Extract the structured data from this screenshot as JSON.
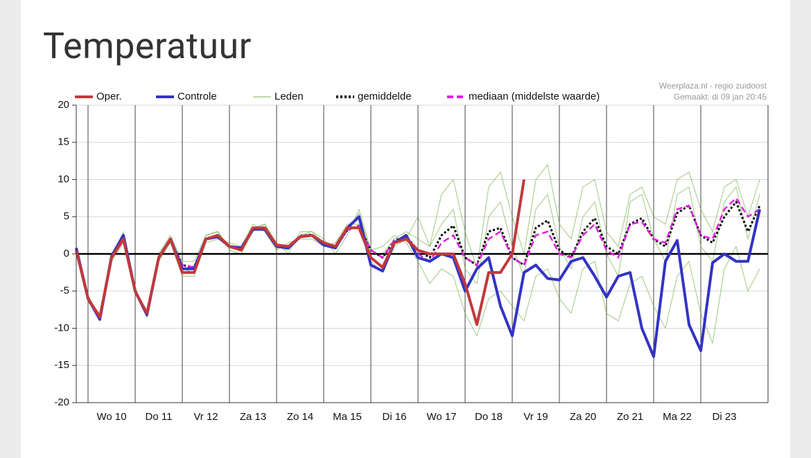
{
  "page": {
    "title": "Temperatuur"
  },
  "chart_data": {
    "type": "line",
    "credits": [
      "Weerplaza.nl - regio zuidoost",
      "Gemaakt: di 09 jan 20:45"
    ],
    "categories": [
      null,
      null,
      null,
      "Wo 10",
      null,
      null,
      null,
      "Do 11",
      null,
      null,
      null,
      "Vr 12",
      null,
      null,
      null,
      "Za 13",
      null,
      null,
      null,
      "Zo 14",
      null,
      null,
      null,
      "Ma 15",
      null,
      null,
      null,
      "Di 16",
      null,
      null,
      null,
      "Wo 17",
      null,
      null,
      null,
      "Do 18",
      null,
      null,
      null,
      "Vr 19",
      null,
      null,
      null,
      "Za 20",
      null,
      null,
      null,
      "Zo 21",
      null,
      null,
      null,
      "Ma 22",
      null,
      null,
      null,
      "Di 23",
      null,
      null,
      null
    ],
    "ylim": [
      -20,
      20
    ],
    "yticks": [
      -20,
      -15,
      -10,
      -5,
      0,
      5,
      10,
      15,
      20
    ],
    "grid": true,
    "zero_line": 0,
    "series": [
      {
        "name": "Oper.",
        "color": "#c0393b",
        "width": 4,
        "values": [
          0.5,
          -6,
          -8.5,
          -0.5,
          2,
          -5,
          -8,
          -0.5,
          2,
          -2.5,
          -2.5,
          2,
          2.5,
          1,
          0.5,
          3.5,
          3.5,
          1.2,
          1,
          2.3,
          2.5,
          1.5,
          1,
          3.5,
          3.5,
          -0.5,
          -1.8,
          1.5,
          2,
          0.5,
          0,
          0,
          0,
          -4,
          -9.5,
          -2.5,
          -2.5,
          0,
          10,
          null,
          null,
          null,
          null,
          null,
          null,
          null,
          null,
          null,
          null,
          null,
          null,
          null,
          null,
          null,
          null,
          null,
          null,
          null,
          null
        ]
      },
      {
        "name": "Controle",
        "color": "#3333c4",
        "width": 4,
        "values": [
          0.8,
          -6,
          -8.8,
          -0.3,
          2.5,
          -5,
          -8.2,
          -0.5,
          2,
          -2,
          -2,
          2,
          2.3,
          1,
          0.8,
          3.3,
          3.3,
          1,
          0.8,
          2.3,
          2.5,
          1.2,
          0.8,
          3.5,
          5,
          -1.5,
          -2.3,
          1.5,
          2.5,
          -0.5,
          -1,
          0,
          -0.5,
          -5,
          -2,
          -0.5,
          -7,
          -11,
          -2.5,
          -1.5,
          -3.3,
          -3.5,
          -1,
          -0.5,
          -3,
          -5.8,
          -3,
          -2.5,
          -10,
          -13.8,
          -1,
          1.8,
          -9.5,
          -13,
          -1.2,
          0,
          -1,
          -1,
          6
        ]
      },
      {
        "name": "Leden",
        "color": "#6aaa3a",
        "width": 1.2,
        "members": [
          [
            1,
            -6,
            -9,
            -0.5,
            3,
            -5,
            -8.5,
            -0.5,
            2,
            -2,
            -2.5,
            2.5,
            3,
            1,
            0.5,
            3.5,
            4,
            1,
            0.5,
            2.5,
            3,
            1.5,
            1,
            3,
            5.5,
            0,
            0,
            2,
            3,
            2,
            1,
            8,
            10,
            3,
            -2,
            9,
            11,
            5,
            0,
            10,
            12,
            4,
            2,
            9,
            10,
            3,
            1,
            8,
            9,
            5,
            4,
            10,
            11,
            6,
            3,
            9,
            10,
            5,
            10
          ],
          [
            0.5,
            -5.5,
            -9,
            0,
            2.5,
            -4.5,
            -8.5,
            0,
            2.5,
            -1,
            -1,
            2.5,
            3,
            0.5,
            0,
            3,
            4,
            1.5,
            0,
            3,
            3,
            2,
            0,
            2.5,
            6,
            0.5,
            1,
            2.5,
            1.5,
            -1,
            -4,
            -2,
            -3,
            -8,
            -11,
            -6,
            -5,
            -7,
            -9,
            -3,
            -2,
            -6,
            -8,
            -2,
            -1,
            -8,
            -9,
            -4,
            -3,
            -7,
            -10,
            -3,
            -1,
            -8,
            -12,
            -2,
            1,
            -5,
            -2
          ],
          [
            0,
            -6.5,
            -8,
            -1,
            1.5,
            -5.5,
            -7.5,
            -1,
            1.5,
            -3,
            -3,
            1.5,
            2,
            1.5,
            1,
            4,
            3,
            0.5,
            1.5,
            2,
            2,
            1,
            1.5,
            4,
            4,
            -1,
            -2.5,
            1,
            2,
            5,
            1,
            4,
            6,
            -2,
            -4,
            5,
            7,
            1,
            -3,
            6,
            8,
            1,
            -2,
            5,
            7,
            0,
            -3,
            7,
            8,
            2,
            -1,
            8,
            9,
            1,
            -1,
            7,
            9,
            2,
            8
          ]
        ]
      },
      {
        "name": "gemiddelde",
        "color": "#000000",
        "width": 3,
        "dash": "dotted",
        "values": [
          0.6,
          -6,
          -8.6,
          -0.4,
          2.2,
          -5,
          -8,
          -0.4,
          1.8,
          -1.5,
          -1.8,
          2,
          2.5,
          1,
          0.6,
          3.4,
          3.5,
          1.2,
          1,
          2.4,
          2.6,
          1.4,
          0.8,
          3.2,
          3.8,
          0.5,
          -0.5,
          1.8,
          2.3,
          0.5,
          -0.5,
          2.5,
          3.8,
          -0.5,
          -1.5,
          3,
          3.5,
          -0.5,
          -1.5,
          3.5,
          4.5,
          0.5,
          -0.5,
          3,
          4.8,
          1,
          0,
          4,
          4.8,
          2,
          1,
          5.5,
          6.5,
          2.5,
          1.5,
          5,
          7,
          3,
          6.5
        ]
      },
      {
        "name": "mediaan (middelste waarde)",
        "color": "#e020e0",
        "width": 2.5,
        "dash": "dashed",
        "values": [
          0.6,
          -6,
          -8.6,
          -0.4,
          2.2,
          -5,
          -8,
          -0.4,
          1.8,
          -1.5,
          -1.8,
          2,
          2.5,
          1,
          0.6,
          3.4,
          3.5,
          1.2,
          1,
          2.4,
          2.6,
          1.4,
          0.8,
          3.2,
          3.8,
          0.5,
          -0.5,
          1.8,
          2.3,
          0,
          -1,
          1.5,
          2.5,
          -0.5,
          -1.5,
          2,
          3,
          -0.5,
          -1.5,
          2.5,
          3,
          0,
          -0.5,
          2.5,
          4,
          0.5,
          -0.5,
          4,
          4.3,
          2,
          1.5,
          6,
          6.5,
          2.5,
          2,
          6,
          7.5,
          5,
          6
        ]
      }
    ]
  }
}
